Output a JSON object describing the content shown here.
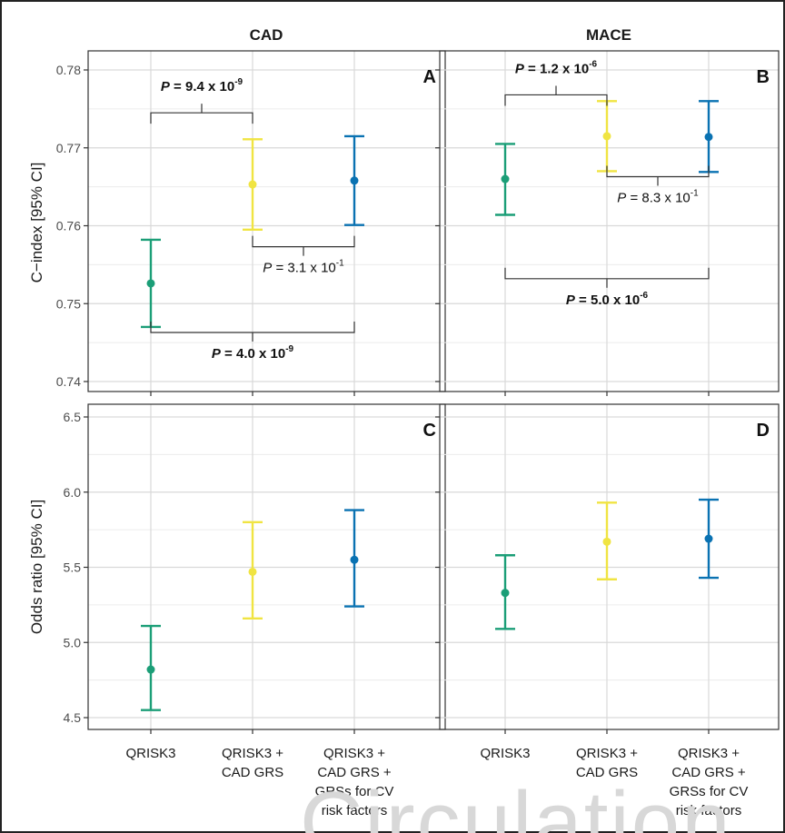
{
  "watermark": "Circulation",
  "colors": {
    "qrisk3": "#1b9e77",
    "qrisk3_cad": "#f0e442",
    "qrisk3_cad_cv": "#0a72b2",
    "grid_major": "#d9d9d9",
    "grid_minor": "#ececec",
    "axis_text": "#4d4d4d"
  },
  "x_categories": [
    [
      "QRISK3"
    ],
    [
      "QRISK3 +",
      "CAD GRS"
    ],
    [
      "QRISK3 +",
      "CAD GRS +",
      "GRSs for CV",
      "risk factors"
    ]
  ],
  "column_titles": [
    "CAD",
    "MACE"
  ],
  "row_ylabels": [
    "C−index [95% CI]",
    "Odds ratio [95% CI]"
  ],
  "chart_data": [
    {
      "type": "scatter",
      "panel": "A",
      "column": "CAD",
      "row": "C-index",
      "ylim": [
        0.739,
        0.7802
      ],
      "yticks": [
        "0.74",
        "0.75",
        "0.76",
        "0.77",
        "0.78"
      ],
      "grid": true,
      "points": [
        {
          "x": 0,
          "estimate": 0.7526,
          "lower": 0.747,
          "upper": 0.7582
        },
        {
          "x": 1,
          "estimate": 0.7653,
          "lower": 0.7595,
          "upper": 0.7711
        },
        {
          "x": 2,
          "estimate": 0.7658,
          "lower": 0.7601,
          "upper": 0.7715
        }
      ],
      "brackets": [
        {
          "from": 0,
          "to": 1,
          "side": "above",
          "y": 0.7745,
          "bold": true,
          "label": {
            "italic": "P",
            "text": " = 9.4 x 10",
            "sup": "-9"
          }
        },
        {
          "from": 1,
          "to": 2,
          "side": "below",
          "y": 0.7573,
          "bold": false,
          "label": {
            "italic": "P",
            "text": " = 3.1 x 10",
            "sup": "-1"
          }
        },
        {
          "from": 0,
          "to": 2,
          "side": "below",
          "y": 0.7463,
          "bold": true,
          "label": {
            "italic": "P",
            "text": " = 4.0 x 10",
            "sup": "-9"
          }
        }
      ]
    },
    {
      "type": "scatter",
      "panel": "B",
      "column": "MACE",
      "row": "C-index",
      "ylim": [
        0.739,
        0.7802
      ],
      "yticks": [
        "",
        "",
        "",
        "",
        ""
      ],
      "grid": true,
      "points": [
        {
          "x": 0,
          "estimate": 0.766,
          "lower": 0.7614,
          "upper": 0.7705
        },
        {
          "x": 1,
          "estimate": 0.7715,
          "lower": 0.767,
          "upper": 0.776
        },
        {
          "x": 2,
          "estimate": 0.7714,
          "lower": 0.7669,
          "upper": 0.776
        }
      ],
      "brackets": [
        {
          "from": 0,
          "to": 1,
          "side": "above",
          "y": 0.7768,
          "bold": true,
          "label": {
            "italic": "P",
            "text": " = 1.2 x 10",
            "sup": "-6"
          }
        },
        {
          "from": 1,
          "to": 2,
          "side": "below",
          "y": 0.7663,
          "bold": false,
          "label": {
            "italic": "P",
            "text": " = 8.3 x 10",
            "sup": "-1"
          }
        },
        {
          "from": 0,
          "to": 2,
          "side": "below",
          "y": 0.7532,
          "bold": true,
          "label": {
            "italic": "P",
            "text": " = 5.0 x 10",
            "sup": "-6"
          }
        }
      ]
    },
    {
      "type": "scatter",
      "panel": "C",
      "column": "CAD",
      "row": "Odds ratio",
      "ylim": [
        4.45,
        6.55
      ],
      "yticks": [
        "4.5",
        "5.0",
        "5.5",
        "6.0",
        "6.5"
      ],
      "grid": true,
      "points": [
        {
          "x": 0,
          "estimate": 4.82,
          "lower": 4.55,
          "upper": 5.11
        },
        {
          "x": 1,
          "estimate": 5.47,
          "lower": 5.16,
          "upper": 5.8
        },
        {
          "x": 2,
          "estimate": 5.55,
          "lower": 5.24,
          "upper": 5.88
        }
      ],
      "brackets": []
    },
    {
      "type": "scatter",
      "panel": "D",
      "column": "MACE",
      "row": "Odds ratio",
      "ylim": [
        4.45,
        6.55
      ],
      "yticks": [
        "",
        "",
        "",
        "",
        ""
      ],
      "grid": true,
      "points": [
        {
          "x": 0,
          "estimate": 5.33,
          "lower": 5.09,
          "upper": 5.58
        },
        {
          "x": 1,
          "estimate": 5.67,
          "lower": 5.42,
          "upper": 5.93
        },
        {
          "x": 2,
          "estimate": 5.69,
          "lower": 5.43,
          "upper": 5.95
        }
      ],
      "brackets": []
    }
  ]
}
